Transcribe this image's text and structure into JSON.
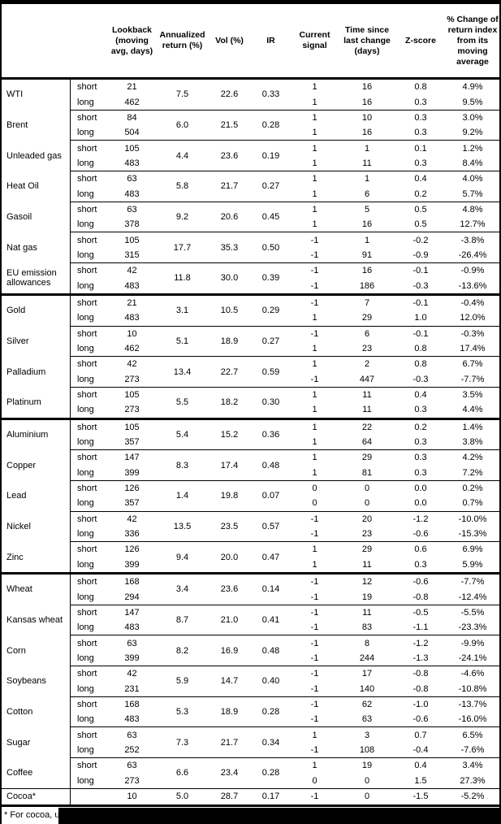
{
  "header": {
    "columns": [
      "Lookback (moving avg, days)",
      "Annualized return (%)",
      "Vol (%)",
      "IR",
      "Current signal",
      "Time since last change (days)",
      "Z-score",
      "% Change of return index from its moving average"
    ]
  },
  "row_labels": {
    "short": "short",
    "long": "long"
  },
  "sections": [
    {
      "name": "energy",
      "groups": [
        {
          "name": "WTI",
          "lookback": [
            "21",
            "462"
          ],
          "ann": "7.5",
          "vol": "22.6",
          "ir": "0.33",
          "signal": [
            "1",
            "1"
          ],
          "time": [
            "16",
            "16"
          ],
          "z": [
            "0.8",
            "0.3"
          ],
          "chg": [
            "4.9%",
            "9.5%"
          ]
        },
        {
          "name": "Brent",
          "lookback": [
            "84",
            "504"
          ],
          "ann": "6.0",
          "vol": "21.5",
          "ir": "0.28",
          "signal": [
            "1",
            "1"
          ],
          "time": [
            "10",
            "16"
          ],
          "z": [
            "0.3",
            "0.3"
          ],
          "chg": [
            "3.0%",
            "9.2%"
          ]
        },
        {
          "name": "Unleaded gas",
          "lookback": [
            "105",
            "483"
          ],
          "ann": "4.4",
          "vol": "23.6",
          "ir": "0.19",
          "signal": [
            "1",
            "1"
          ],
          "time": [
            "1",
            "11"
          ],
          "z": [
            "0.1",
            "0.3"
          ],
          "chg": [
            "1.2%",
            "8.4%"
          ]
        },
        {
          "name": "Heat Oil",
          "lookback": [
            "63",
            "483"
          ],
          "ann": "5.8",
          "vol": "21.7",
          "ir": "0.27",
          "signal": [
            "1",
            "1"
          ],
          "time": [
            "1",
            "6"
          ],
          "z": [
            "0.4",
            "0.2"
          ],
          "chg": [
            "4.0%",
            "5.7%"
          ]
        },
        {
          "name": "Gasoil",
          "lookback": [
            "63",
            "378"
          ],
          "ann": "9.2",
          "vol": "20.6",
          "ir": "0.45",
          "signal": [
            "1",
            "1"
          ],
          "time": [
            "5",
            "16"
          ],
          "z": [
            "0.5",
            "0.5"
          ],
          "chg": [
            "4.8%",
            "12.7%"
          ]
        },
        {
          "name": "Nat gas",
          "lookback": [
            "105",
            "315"
          ],
          "ann": "17.7",
          "vol": "35.3",
          "ir": "0.50",
          "signal": [
            "-1",
            "-1"
          ],
          "time": [
            "1",
            "91"
          ],
          "z": [
            "-0.2",
            "-0.9"
          ],
          "chg": [
            "-3.8%",
            "-26.4%"
          ]
        },
        {
          "name": "EU emission allowances",
          "lookback": [
            "42",
            "483"
          ],
          "ann": "11.8",
          "vol": "30.0",
          "ir": "0.39",
          "signal": [
            "-1",
            "-1"
          ],
          "time": [
            "16",
            "186"
          ],
          "z": [
            "-0.1",
            "-0.3"
          ],
          "chg": [
            "-0.9%",
            "-13.6%"
          ]
        }
      ]
    },
    {
      "name": "precious-metals",
      "groups": [
        {
          "name": "Gold",
          "lookback": [
            "21",
            "483"
          ],
          "ann": "3.1",
          "vol": "10.5",
          "ir": "0.29",
          "signal": [
            "-1",
            "1"
          ],
          "time": [
            "7",
            "29"
          ],
          "z": [
            "-0.1",
            "1.0"
          ],
          "chg": [
            "-0.4%",
            "12.0%"
          ]
        },
        {
          "name": "Silver",
          "lookback": [
            "10",
            "462"
          ],
          "ann": "5.1",
          "vol": "18.9",
          "ir": "0.27",
          "signal": [
            "-1",
            "1"
          ],
          "time": [
            "6",
            "23"
          ],
          "z": [
            "-0.1",
            "0.8"
          ],
          "chg": [
            "-0.3%",
            "17.4%"
          ]
        },
        {
          "name": "Palladium",
          "lookback": [
            "42",
            "273"
          ],
          "ann": "13.4",
          "vol": "22.7",
          "ir": "0.59",
          "signal": [
            "1",
            "-1"
          ],
          "time": [
            "2",
            "447"
          ],
          "z": [
            "0.8",
            "-0.3"
          ],
          "chg": [
            "6.7%",
            "-7.7%"
          ]
        },
        {
          "name": "Platinum",
          "lookback": [
            "105",
            "273"
          ],
          "ann": "5.5",
          "vol": "18.2",
          "ir": "0.30",
          "signal": [
            "1",
            "1"
          ],
          "time": [
            "11",
            "11"
          ],
          "z": [
            "0.4",
            "0.3"
          ],
          "chg": [
            "3.5%",
            "4.4%"
          ]
        }
      ]
    },
    {
      "name": "base-metals",
      "groups": [
        {
          "name": "Aluminium",
          "lookback": [
            "105",
            "357"
          ],
          "ann": "5.4",
          "vol": "15.2",
          "ir": "0.36",
          "signal": [
            "1",
            "1"
          ],
          "time": [
            "22",
            "64"
          ],
          "z": [
            "0.2",
            "0.3"
          ],
          "chg": [
            "1.4%",
            "3.8%"
          ]
        },
        {
          "name": "Copper",
          "lookback": [
            "147",
            "399"
          ],
          "ann": "8.3",
          "vol": "17.4",
          "ir": "0.48",
          "signal": [
            "1",
            "1"
          ],
          "time": [
            "29",
            "81"
          ],
          "z": [
            "0.3",
            "0.3"
          ],
          "chg": [
            "4.2%",
            "7.2%"
          ]
        },
        {
          "name": "Lead",
          "lookback": [
            "126",
            "357"
          ],
          "ann": "1.4",
          "vol": "19.8",
          "ir": "0.07",
          "signal": [
            "0",
            "0"
          ],
          "time": [
            "0",
            "0"
          ],
          "z": [
            "0.0",
            "0.0"
          ],
          "chg": [
            "0.2%",
            "0.7%"
          ]
        },
        {
          "name": "Nickel",
          "lookback": [
            "42",
            "336"
          ],
          "ann": "13.5",
          "vol": "23.5",
          "ir": "0.57",
          "signal": [
            "-1",
            "-1"
          ],
          "time": [
            "20",
            "23"
          ],
          "z": [
            "-1.2",
            "-0.6"
          ],
          "chg": [
            "-10.0%",
            "-15.3%"
          ]
        },
        {
          "name": "Zinc",
          "lookback": [
            "126",
            "399"
          ],
          "ann": "9.4",
          "vol": "20.0",
          "ir": "0.47",
          "signal": [
            "1",
            "1"
          ],
          "time": [
            "29",
            "11"
          ],
          "z": [
            "0.6",
            "0.3"
          ],
          "chg": [
            "6.9%",
            "5.9%"
          ]
        }
      ]
    },
    {
      "name": "agriculture",
      "groups": [
        {
          "name": "Wheat",
          "lookback": [
            "168",
            "294"
          ],
          "ann": "3.4",
          "vol": "23.6",
          "ir": "0.14",
          "signal": [
            "-1",
            "-1"
          ],
          "time": [
            "12",
            "19"
          ],
          "z": [
            "-0.6",
            "-0.8"
          ],
          "chg": [
            "-7.7%",
            "-12.4%"
          ]
        },
        {
          "name": "Kansas wheat",
          "lookback": [
            "147",
            "483"
          ],
          "ann": "8.7",
          "vol": "21.0",
          "ir": "0.41",
          "signal": [
            "-1",
            "-1"
          ],
          "time": [
            "11",
            "83"
          ],
          "z": [
            "-0.5",
            "-1.1"
          ],
          "chg": [
            "-5.5%",
            "-23.3%"
          ]
        },
        {
          "name": "Corn",
          "lookback": [
            "63",
            "399"
          ],
          "ann": "8.2",
          "vol": "16.9",
          "ir": "0.48",
          "signal": [
            "-1",
            "-1"
          ],
          "time": [
            "8",
            "244"
          ],
          "z": [
            "-1.2",
            "-1.3"
          ],
          "chg": [
            "-9.9%",
            "-24.1%"
          ]
        },
        {
          "name": "Soybeans",
          "lookback": [
            "42",
            "231"
          ],
          "ann": "5.9",
          "vol": "14.7",
          "ir": "0.40",
          "signal": [
            "-1",
            "-1"
          ],
          "time": [
            "17",
            "140"
          ],
          "z": [
            "-0.8",
            "-0.8"
          ],
          "chg": [
            "-4.6%",
            "-10.8%"
          ]
        },
        {
          "name": "Cotton",
          "lookback": [
            "168",
            "483"
          ],
          "ann": "5.3",
          "vol": "18.9",
          "ir": "0.28",
          "signal": [
            "-1",
            "-1"
          ],
          "time": [
            "62",
            "63"
          ],
          "z": [
            "-1.0",
            "-0.6"
          ],
          "chg": [
            "-13.7%",
            "-16.0%"
          ]
        },
        {
          "name": "Sugar",
          "lookback": [
            "63",
            "252"
          ],
          "ann": "7.3",
          "vol": "21.7",
          "ir": "0.34",
          "signal": [
            "1",
            "-1"
          ],
          "time": [
            "3",
            "108"
          ],
          "z": [
            "0.7",
            "-0.4"
          ],
          "chg": [
            "6.5%",
            "-7.6%"
          ]
        },
        {
          "name": "Coffee",
          "lookback": [
            "63",
            "273"
          ],
          "ann": "6.6",
          "vol": "23.4",
          "ir": "0.28",
          "signal": [
            "1",
            "0"
          ],
          "time": [
            "19",
            "0"
          ],
          "z": [
            "0.4",
            "1.5"
          ],
          "chg": [
            "3.4%",
            "27.3%"
          ]
        }
      ]
    }
  ],
  "cocoa": {
    "name": "Cocoa*",
    "lookback": "10",
    "ann": "5.0",
    "vol": "28.7",
    "ir": "0.17",
    "signal": "-1",
    "time": "0",
    "z": "-1.5",
    "chg": "-5.2%"
  },
  "footnote": {
    "text": "* For cocoa, uses",
    "redacted": true
  },
  "colors": {
    "line": "#000000",
    "background": "#ffffff",
    "redaction": "#000000"
  }
}
